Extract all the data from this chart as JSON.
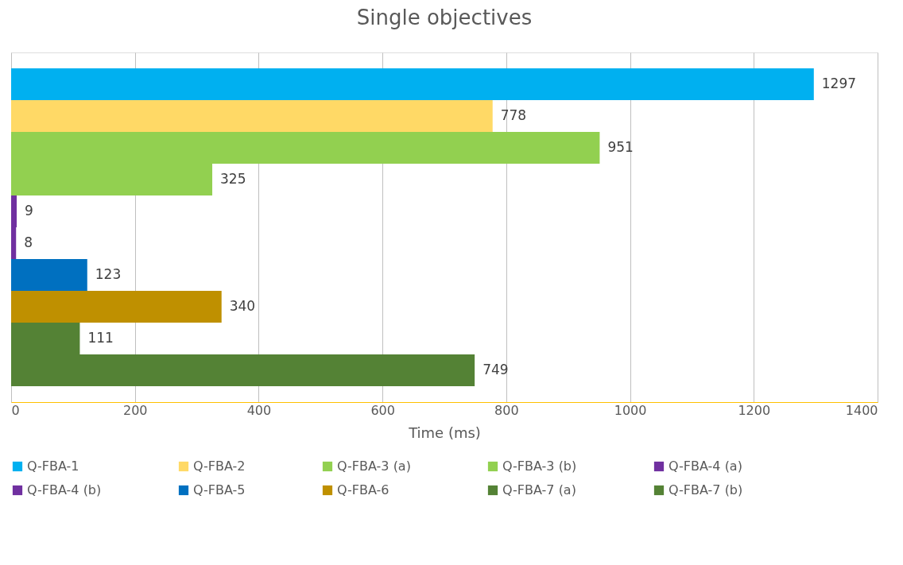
{
  "chart_data": {
    "type": "bar",
    "orientation": "horizontal",
    "title": "Single objectives",
    "xlabel": "Time (ms)",
    "categories": [
      null
    ],
    "series": [
      {
        "name": "Q-FBA-1",
        "color": "#00b0f0",
        "values": [
          1297
        ]
      },
      {
        "name": "Q-FBA-2",
        "color": "#ffd966",
        "values": [
          778
        ]
      },
      {
        "name": "Q-FBA-3 (a)",
        "color": "#92d050",
        "values": [
          951
        ]
      },
      {
        "name": "Q-FBA-3 (b)",
        "color": "#92d050",
        "values": [
          325
        ]
      },
      {
        "name": "Q-FBA-4 (a)",
        "color": "#7030a0",
        "values": [
          9
        ]
      },
      {
        "name": "Q-FBA-4 (b)",
        "color": "#7030a0",
        "values": [
          8
        ]
      },
      {
        "name": "Q-FBA-5",
        "color": "#0070c0",
        "values": [
          123
        ]
      },
      {
        "name": "Q-FBA-6",
        "color": "#bf9000",
        "values": [
          340
        ]
      },
      {
        "name": "Q-FBA-7 (a)",
        "color": "#548235",
        "values": [
          111
        ]
      },
      {
        "name": "Q-FBA-7 (b)",
        "color": "#548235",
        "values": [
          749
        ]
      }
    ],
    "xlim": [
      0,
      1400
    ],
    "xticks": [
      0,
      200,
      400,
      600,
      800,
      1000,
      1200,
      1400
    ],
    "grid": "x",
    "legend": "bottom",
    "tick_labels": "x",
    "data_labels": true
  }
}
